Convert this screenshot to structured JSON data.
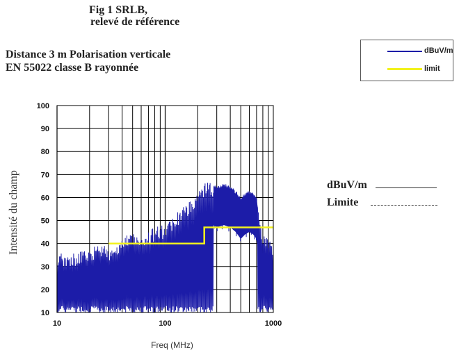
{
  "header": {
    "title_line1": "Fig 1 SRLB,",
    "title_line2": "relevé de référence",
    "subtitle_line1": "Distance 3 m Polarisation verticale",
    "subtitle_line2": "EN 55022 classe B rayonnée"
  },
  "legend": {
    "items": [
      {
        "label": "dBuV/m",
        "color": "#1c1ca8"
      },
      {
        "label": "limit",
        "color": "#f2f21c"
      }
    ]
  },
  "side_legend": {
    "dbuv_label": "dBuV/m",
    "limite_label": "Limite"
  },
  "chart_data": {
    "type": "line",
    "xlabel": "Freq (MHz)",
    "ylabel": "Intensité du champ",
    "x_scale": "log",
    "xlim": [
      10,
      1000
    ],
    "ylim": [
      10,
      100
    ],
    "x_ticks": [
      "10",
      "100",
      "1000"
    ],
    "y_ticks": [
      "100",
      "90",
      "80",
      "70",
      "60",
      "50",
      "40",
      "30",
      "20",
      "10"
    ],
    "grid": true,
    "legend_position": "top-right",
    "series": [
      {
        "name": "dBuV/m",
        "color": "#1c1ca8",
        "envelope_x": [
          10,
          11,
          13,
          15,
          18,
          20,
          25,
          30,
          40,
          50,
          60,
          80,
          100,
          120,
          150,
          180,
          200,
          230,
          260,
          300,
          350,
          400,
          450,
          500,
          550,
          600,
          650,
          700,
          750,
          800,
          900,
          1000
        ],
        "envelope_y": [
          33,
          36,
          35,
          36,
          37,
          38,
          40,
          38,
          42,
          45,
          43,
          47,
          48,
          52,
          56,
          60,
          63,
          66,
          67,
          65,
          66,
          65,
          63,
          60,
          62,
          63,
          62,
          60,
          50,
          45,
          42,
          38
        ]
      },
      {
        "name": "limit",
        "color": "#f2f21c",
        "x": [
          30,
          230,
          230,
          1000
        ],
        "y": [
          40,
          40,
          47,
          47
        ]
      }
    ]
  }
}
